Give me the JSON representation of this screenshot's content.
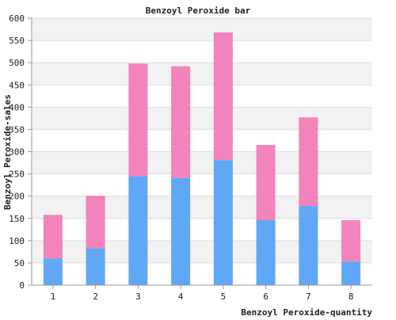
{
  "chart_data": {
    "type": "bar",
    "stacked": true,
    "title": "Benzoyl Peroxide bar",
    "xlabel": "Benzoyl Peroxide-quantity",
    "ylabel": "Benzoyl Peroxide-sales",
    "categories": [
      "1",
      "2",
      "3",
      "4",
      "5",
      "6",
      "7",
      "8"
    ],
    "ylim": [
      0,
      600
    ],
    "yticks": [
      0,
      50,
      100,
      150,
      200,
      250,
      300,
      350,
      400,
      450,
      500,
      550,
      600
    ],
    "grid": true,
    "legend": "none",
    "series": [
      {
        "values": [
          60,
          83,
          245,
          241,
          281,
          146,
          178,
          53
        ],
        "color": "#60a8f5"
      },
      {
        "values": [
          98,
          118,
          253,
          251,
          287,
          169,
          199,
          93
        ],
        "color": "#f283bb"
      }
    ],
    "band_colors": [
      "#f2f2f2",
      "#ffffff"
    ]
  }
}
